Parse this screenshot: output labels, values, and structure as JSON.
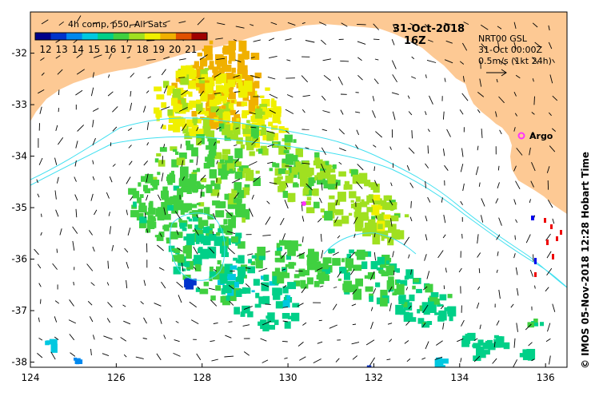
{
  "map": {
    "lon_range": [
      124,
      136.5
    ],
    "lat_range": [
      -38.1,
      -31.2
    ],
    "x_ticks": [
      "124",
      "126",
      "128",
      "130",
      "132",
      "134",
      "136"
    ],
    "y_ticks": [
      "-32",
      "-33",
      "-34",
      "-35",
      "-36",
      "-37",
      "-38"
    ],
    "land_color": "#fdc994",
    "ocean_color": "#ffffff",
    "contour_color": "#40e0f0"
  },
  "legend": {
    "title": "4h comp, p50, All Sats",
    "ticks": [
      "12",
      "13",
      "14",
      "15",
      "16",
      "17",
      "18",
      "19",
      "20",
      "21"
    ],
    "colormap": [
      "#00008b",
      "#0033cc",
      "#0088ee",
      "#00c8e0",
      "#00d088",
      "#40d040",
      "#a0e020",
      "#f0f000",
      "#f0b000",
      "#e05000",
      "#a00000"
    ]
  },
  "header": {
    "date": "31-Oct-2018",
    "time": "16Z"
  },
  "current_info": {
    "line1": "NRT00 GSL",
    "line2": "31-Oct 00:00Z",
    "line3": "0.5m/s (1kt 24h)"
  },
  "argo": {
    "label": "Argo",
    "color": "#ff33ff"
  },
  "credit": "© IMOS 05-Nov-2018 12:28 Hobart Time"
}
